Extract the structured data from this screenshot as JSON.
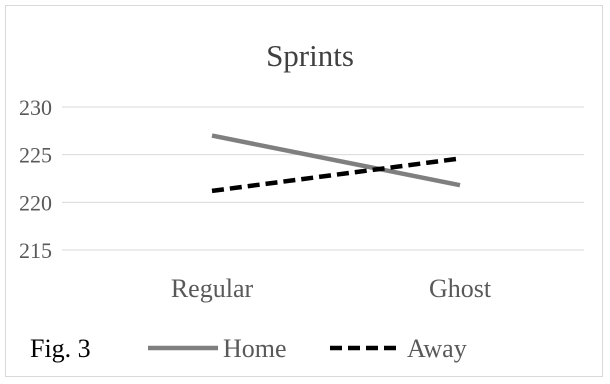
{
  "chart_data": {
    "type": "line",
    "title": "Sprints",
    "categories": [
      "Regular",
      "Ghost"
    ],
    "ylim": [
      215,
      230
    ],
    "yticks": [
      215,
      220,
      225,
      230
    ],
    "grid": true,
    "legend_position": "bottom",
    "series": [
      {
        "name": "Home",
        "values": [
          227,
          221.8
        ],
        "color": "#7f7f7f",
        "line_style": "solid"
      },
      {
        "name": "Away",
        "values": [
          221.2,
          224.6
        ],
        "color": "#000000",
        "line_style": "dashed"
      }
    ],
    "caption": "Fig. 3"
  }
}
